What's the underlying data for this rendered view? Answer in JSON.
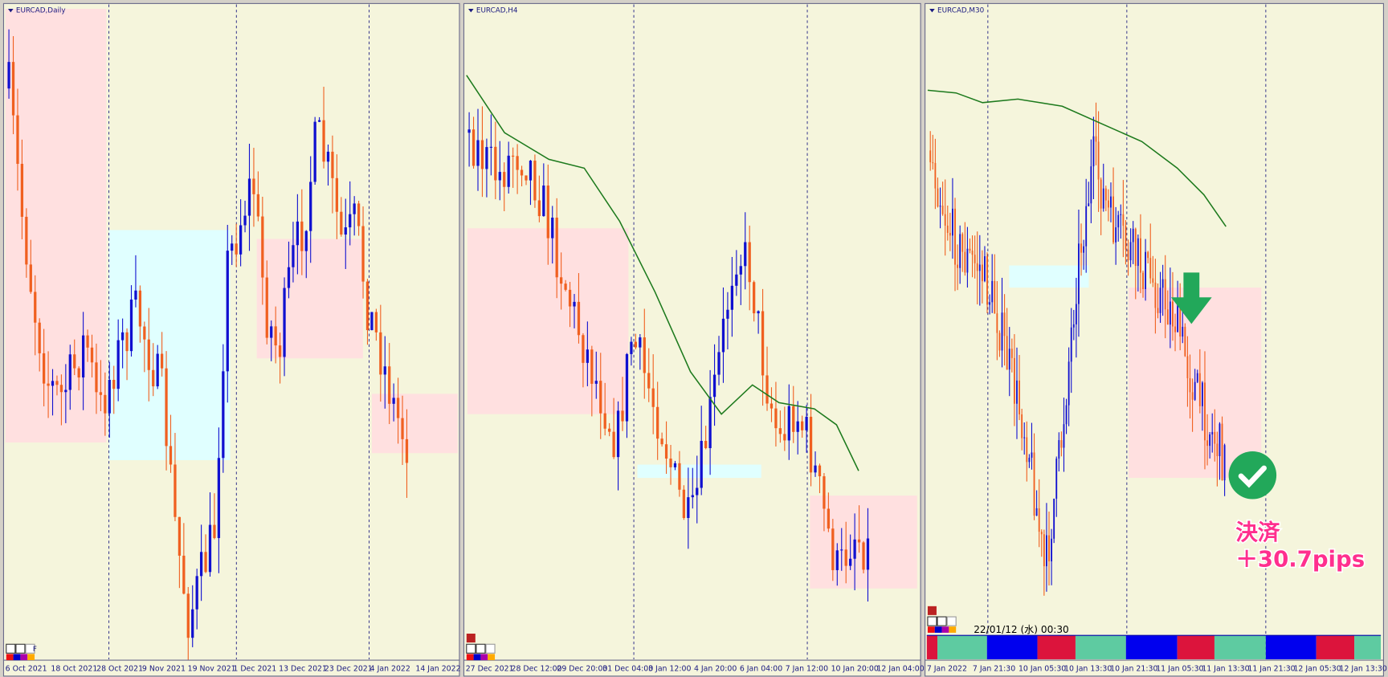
{
  "panels": [
    {
      "title": "EURCAD,Daily",
      "x_labels": [
        "6 Oct 2021",
        "18 Oct 2021",
        "28 Oct 2021",
        "9 Nov 2021",
        "19 Nov 2021",
        "1 Dec 2021",
        "13 Dec 2021",
        "23 Dec 2021",
        "4 Jan 2022",
        "14 Jan 2022"
      ]
    },
    {
      "title": "EURCAD,H4",
      "x_labels": [
        "27 Dec 2021",
        "28 Dec 12:00",
        "29 Dec 20:00",
        "31 Dec 04:00",
        "3 Jan 12:00",
        "4 Jan 20:00",
        "6 Jan 04:00",
        "7 Jan 12:00",
        "10 Jan 20:00",
        "12 Jan 04:00"
      ]
    },
    {
      "title": "EURCAD,M30",
      "x_labels": [
        "7 Jan 2022",
        "7 Jan 21:30",
        "10 Jan 05:30",
        "10 Jan 13:30",
        "10 Jan 21:30",
        "11 Jan 05:30",
        "11 Jan 13:30",
        "11 Jan 21:30",
        "12 Jan 05:30",
        "12 Jan 13:30"
      ]
    }
  ],
  "toolbar_letter": "F",
  "status_time": "22/01/12 (水) 00:30",
  "annotation": {
    "line1": "決済",
    "line2": "＋30.7pips"
  }
}
